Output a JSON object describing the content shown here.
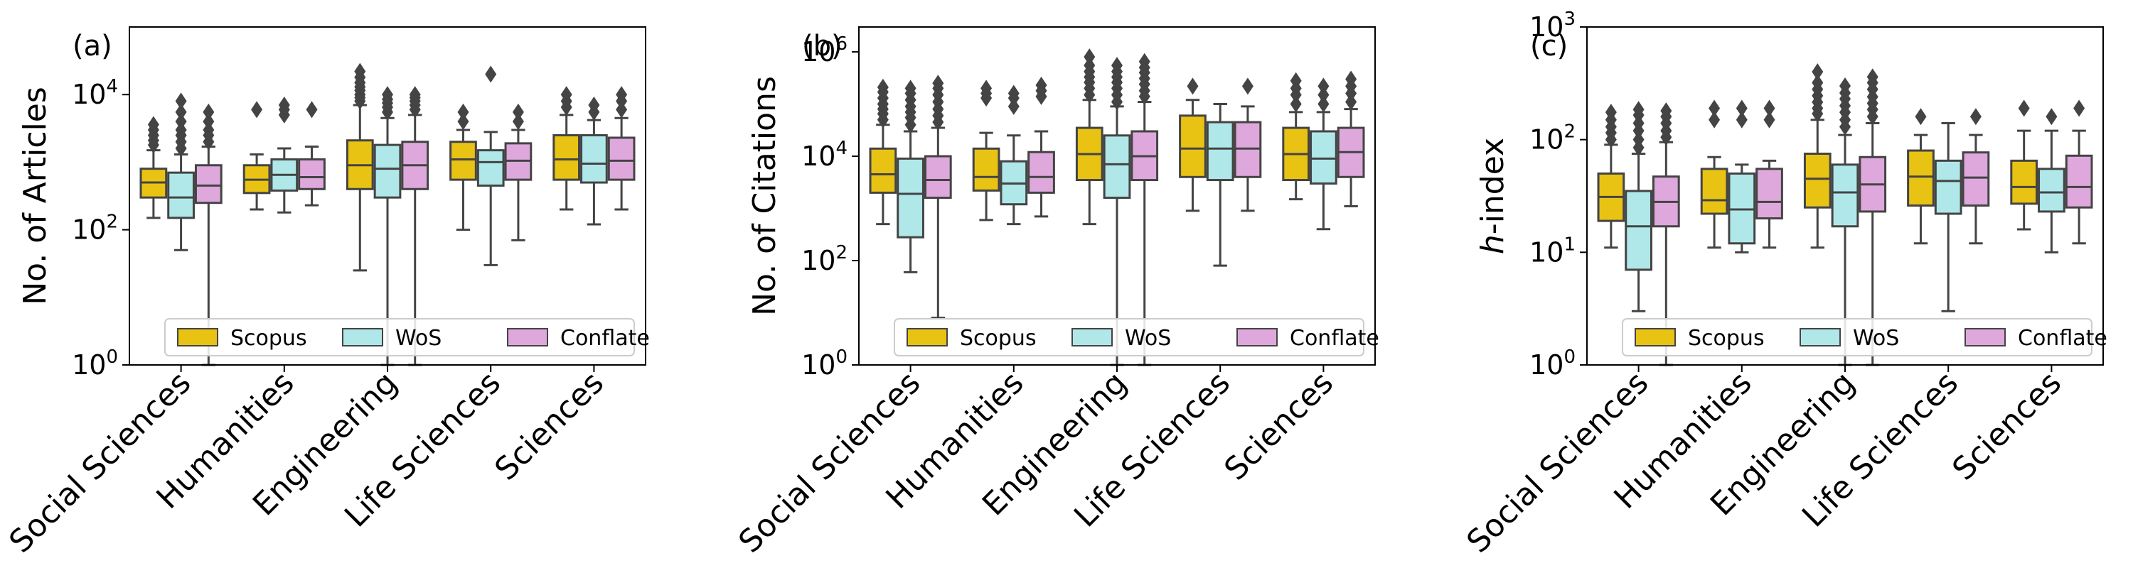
{
  "colors": {
    "Scopus": "#e8c313",
    "WoS": "#b0e8ea",
    "Conflate": "#dea8dc",
    "edge": "#444444"
  },
  "chart_data": [
    {
      "type": "box",
      "panel": "(a)",
      "ylabel": "No. of Articles",
      "yscale": "log",
      "ylim": [
        1,
        100000
      ],
      "yticks": [
        {
          "v": 1,
          "base": "10",
          "exp": "0"
        },
        {
          "v": 100,
          "base": "10",
          "exp": "2"
        },
        {
          "v": 10000,
          "base": "10",
          "exp": "4"
        }
      ],
      "categories": [
        "Social Sciences",
        "Humanities",
        "Engineering",
        "Life Sciences",
        "Sciences"
      ],
      "legend": [
        "Scopus",
        "WoS",
        "Conflate"
      ],
      "series": [
        {
          "name": "Scopus",
          "boxes": [
            {
              "whislo": 150,
              "q1": 300,
              "med": 500,
              "q3": 800,
              "whishi": 1500,
              "fliers": [
                1800,
                2100,
                2500,
                3000,
                3600
              ]
            },
            {
              "whislo": 200,
              "q1": 350,
              "med": 550,
              "q3": 900,
              "whishi": 1300,
              "fliers": [
                6000
              ]
            },
            {
              "whislo": 25,
              "q1": 400,
              "med": 900,
              "q3": 2100,
              "whishi": 7000,
              "fliers": [
                8000,
                9000,
                10000,
                11500,
                13000,
                15000,
                18000,
                22000
              ]
            },
            {
              "whislo": 100,
              "q1": 550,
              "med": 1100,
              "q3": 2000,
              "whishi": 3000,
              "fliers": [
                4000,
                5500
              ]
            },
            {
              "whislo": 200,
              "q1": 550,
              "med": 1100,
              "q3": 2500,
              "whishi": 5000,
              "fliers": [
                6500,
                8000,
                10000
              ]
            }
          ]
        },
        {
          "name": "WoS",
          "boxes": [
            {
              "whislo": 50,
              "q1": 150,
              "med": 300,
              "q3": 700,
              "whishi": 1300,
              "fliers": [
                1600,
                2000,
                2500,
                3000,
                4000,
                5500,
                8000
              ]
            },
            {
              "whislo": 180,
              "q1": 380,
              "med": 650,
              "q3": 1100,
              "whishi": 1600,
              "fliers": [
                5000,
                6000,
                7000
              ]
            },
            {
              "whislo": 1,
              "q1": 300,
              "med": 800,
              "q3": 1800,
              "whishi": 4500,
              "fliers": [
                5500,
                6500,
                7500,
                8500,
                10000
              ]
            },
            {
              "whislo": 30,
              "q1": 450,
              "med": 1000,
              "q3": 1500,
              "whishi": 2800,
              "fliers": [
                20000
              ]
            },
            {
              "whislo": 120,
              "q1": 500,
              "med": 950,
              "q3": 2500,
              "whishi": 4200,
              "fliers": [
                5500,
                7000
              ]
            }
          ]
        },
        {
          "name": "Conflate",
          "boxes": [
            {
              "whislo": 1,
              "q1": 250,
              "med": 450,
              "q3": 900,
              "whishi": 1700,
              "fliers": [
                2000,
                2500,
                3000,
                4000,
                5500
              ]
            },
            {
              "whislo": 230,
              "q1": 400,
              "med": 600,
              "q3": 1100,
              "whishi": 1700,
              "fliers": [
                6000
              ]
            },
            {
              "whislo": 1,
              "q1": 400,
              "med": 900,
              "q3": 2000,
              "whishi": 5000,
              "fliers": [
                6000,
                7000,
                8000,
                9000,
                10000
              ]
            },
            {
              "whislo": 70,
              "q1": 550,
              "med": 1050,
              "q3": 1900,
              "whishi": 3000,
              "fliers": [
                4000,
                5500
              ]
            },
            {
              "whislo": 200,
              "q1": 550,
              "med": 1050,
              "q3": 2300,
              "whishi": 4500,
              "fliers": [
                6000,
                8000,
                10000
              ]
            }
          ]
        }
      ]
    },
    {
      "type": "box",
      "panel": "(b)",
      "ylabel": "No. of Citations",
      "yscale": "log",
      "ylim": [
        1,
        3000000
      ],
      "yticks": [
        {
          "v": 1,
          "base": "10",
          "exp": "0"
        },
        {
          "v": 100,
          "base": "10",
          "exp": "2"
        },
        {
          "v": 10000,
          "base": "10",
          "exp": "4"
        },
        {
          "v": 1000000,
          "base": "10",
          "exp": "6"
        }
      ],
      "categories": [
        "Social Sciences",
        "Humanities",
        "Engineering",
        "Life Sciences",
        "Sciences"
      ],
      "legend": [
        "Scopus",
        "WoS",
        "Conflate"
      ],
      "series": [
        {
          "name": "Scopus",
          "boxes": [
            {
              "whislo": 500,
              "q1": 2000,
              "med": 4500,
              "q3": 14000,
              "whishi": 40000,
              "fliers": [
                50000,
                65000,
                80000,
                100000,
                130000,
                170000,
                210000
              ]
            },
            {
              "whislo": 600,
              "q1": 2200,
              "med": 4000,
              "q3": 14000,
              "whishi": 28000,
              "fliers": [
                130000,
                160000,
                200000
              ]
            },
            {
              "whislo": 500,
              "q1": 3500,
              "med": 11000,
              "q3": 35000,
              "whishi": 120000,
              "fliers": [
                150000,
                200000,
                260000,
                330000,
                420000,
                550000,
                800000
              ]
            },
            {
              "whislo": 900,
              "q1": 4000,
              "med": 14000,
              "q3": 60000,
              "whishi": 120000,
              "fliers": [
                220000
              ]
            },
            {
              "whislo": 1500,
              "q1": 3500,
              "med": 11000,
              "q3": 35000,
              "whishi": 70000,
              "fliers": [
                100000,
                150000,
                200000,
                280000
              ]
            }
          ]
        },
        {
          "name": "WoS",
          "boxes": [
            {
              "whislo": 60,
              "q1": 280,
              "med": 1900,
              "q3": 9000,
              "whishi": 30000,
              "fliers": [
                40000,
                55000,
                70000,
                90000,
                120000,
                160000,
                200000
              ]
            },
            {
              "whislo": 500,
              "q1": 1200,
              "med": 3000,
              "q3": 8000,
              "whishi": 25000,
              "fliers": [
                90000,
                130000,
                160000
              ]
            },
            {
              "whislo": 1,
              "q1": 1600,
              "med": 7000,
              "q3": 25000,
              "whishi": 90000,
              "fliers": [
                110000,
                150000,
                200000,
                260000,
                330000,
                420000,
                550000
              ]
            },
            {
              "whislo": 80,
              "q1": 3500,
              "med": 14000,
              "q3": 45000,
              "whishi": 100000,
              "fliers": []
            },
            {
              "whislo": 400,
              "q1": 3000,
              "med": 9000,
              "q3": 30000,
              "whishi": 70000,
              "fliers": [
                100000,
                150000,
                220000
              ]
            }
          ]
        },
        {
          "name": "Conflate",
          "boxes": [
            {
              "whislo": 8,
              "q1": 1600,
              "med": 3500,
              "q3": 10000,
              "whishi": 35000,
              "fliers": [
                45000,
                60000,
                80000,
                110000,
                150000,
                200000,
                250000
              ]
            },
            {
              "whislo": 700,
              "q1": 2000,
              "med": 4000,
              "q3": 12000,
              "whishi": 30000,
              "fliers": [
                140000,
                180000,
                230000
              ]
            },
            {
              "whislo": 1,
              "q1": 3500,
              "med": 10000,
              "q3": 30000,
              "whishi": 110000,
              "fliers": [
                140000,
                180000,
                240000,
                310000,
                400000,
                500000,
                650000
              ]
            },
            {
              "whislo": 900,
              "q1": 4000,
              "med": 14000,
              "q3": 45000,
              "whishi": 90000,
              "fliers": [
                220000
              ]
            },
            {
              "whislo": 1100,
              "q1": 4000,
              "med": 12000,
              "q3": 35000,
              "whishi": 80000,
              "fliers": [
                110000,
                160000,
                220000,
                300000
              ]
            }
          ]
        }
      ]
    },
    {
      "type": "box",
      "panel": "(c)",
      "ylabel": "h-index",
      "yscale": "log",
      "ylim": [
        1,
        1000
      ],
      "yticks": [
        {
          "v": 1,
          "base": "10",
          "exp": "0"
        },
        {
          "v": 10,
          "base": "10",
          "exp": "1"
        },
        {
          "v": 100,
          "base": "10",
          "exp": "2"
        },
        {
          "v": 1000,
          "base": "10",
          "exp": "3"
        }
      ],
      "categories": [
        "Social Sciences",
        "Humanities",
        "Engineering",
        "Life Sciences",
        "Sciences"
      ],
      "legend": [
        "Scopus",
        "WoS",
        "Conflate"
      ],
      "series": [
        {
          "name": "Scopus",
          "boxes": [
            {
              "whislo": 11,
              "q1": 19,
              "med": 31,
              "q3": 50,
              "whishi": 90,
              "fliers": [
                100,
                115,
                130,
                150,
                175
              ]
            },
            {
              "whislo": 11,
              "q1": 22,
              "med": 29,
              "q3": 55,
              "whishi": 70,
              "fliers": [
                150,
                190
              ]
            },
            {
              "whislo": 11,
              "q1": 25,
              "med": 45,
              "q3": 75,
              "whishi": 150,
              "fliers": [
                170,
                190,
                215,
                245,
                280,
                320,
                400
              ]
            },
            {
              "whislo": 12,
              "q1": 26,
              "med": 47,
              "q3": 80,
              "whishi": 110,
              "fliers": [
                160
              ]
            },
            {
              "whislo": 16,
              "q1": 27,
              "med": 38,
              "q3": 65,
              "whishi": 120,
              "fliers": [
                190
              ]
            }
          ]
        },
        {
          "name": "WoS",
          "boxes": [
            {
              "whislo": 3,
              "q1": 7,
              "med": 17,
              "q3": 35,
              "whishi": 75,
              "fliers": [
                85,
                100,
                120,
                140,
                165,
                185
              ]
            },
            {
              "whislo": 10,
              "q1": 12,
              "med": 24,
              "q3": 50,
              "whishi": 60,
              "fliers": [
                150,
                190
              ]
            },
            {
              "whislo": 1,
              "q1": 17,
              "med": 34,
              "q3": 60,
              "whishi": 110,
              "fliers": [
                130,
                150,
                175,
                200,
                230,
                260,
                300
              ]
            },
            {
              "whislo": 3,
              "q1": 22,
              "med": 43,
              "q3": 65,
              "whishi": 140,
              "fliers": []
            },
            {
              "whislo": 10,
              "q1": 23,
              "med": 34,
              "q3": 55,
              "whishi": 120,
              "fliers": [
                160
              ]
            }
          ]
        },
        {
          "name": "Conflate",
          "boxes": [
            {
              "whislo": 1,
              "q1": 17,
              "med": 28,
              "q3": 47,
              "whishi": 95,
              "fliers": [
                105,
                120,
                140,
                160,
                180
              ]
            },
            {
              "whislo": 11,
              "q1": 20,
              "med": 28,
              "q3": 55,
              "whishi": 65,
              "fliers": [
                150,
                190
              ]
            },
            {
              "whislo": 1,
              "q1": 23,
              "med": 40,
              "q3": 70,
              "whishi": 140,
              "fliers": [
                160,
                185,
                210,
                240,
                280,
                320,
                360
              ]
            },
            {
              "whislo": 12,
              "q1": 26,
              "med": 46,
              "q3": 77,
              "whishi": 110,
              "fliers": [
                160
              ]
            },
            {
              "whislo": 12,
              "q1": 25,
              "med": 38,
              "q3": 72,
              "whishi": 120,
              "fliers": [
                190
              ]
            }
          ]
        }
      ]
    }
  ]
}
